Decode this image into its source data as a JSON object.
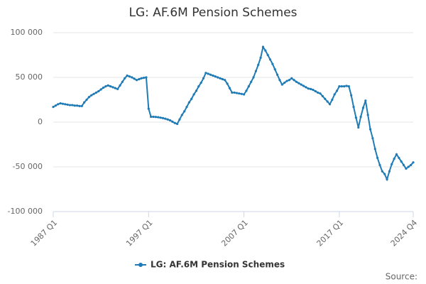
{
  "chart_data": {
    "type": "line",
    "title": "LG: AF.6M Pension Schemes",
    "categories": [
      "1987 Q1",
      null,
      null,
      null,
      null,
      null,
      null,
      null,
      null,
      null,
      null,
      null,
      null,
      null,
      null,
      null,
      null,
      null,
      null,
      null,
      null,
      null,
      null,
      null,
      null,
      null,
      null,
      null,
      null,
      null,
      null,
      null,
      null,
      null,
      null,
      null,
      null,
      null,
      null,
      null,
      "1997 Q1",
      null,
      null,
      null,
      null,
      null,
      null,
      null,
      null,
      null,
      null,
      null,
      null,
      null,
      null,
      null,
      null,
      null,
      null,
      null,
      null,
      null,
      null,
      null,
      null,
      null,
      null,
      null,
      null,
      null,
      null,
      null,
      null,
      null,
      null,
      null,
      null,
      null,
      null,
      null,
      "2007 Q1",
      null,
      null,
      null,
      null,
      null,
      null,
      null,
      null,
      null,
      null,
      null,
      null,
      null,
      null,
      null,
      null,
      null,
      null,
      null,
      null,
      null,
      null,
      null,
      null,
      null,
      null,
      null,
      null,
      null,
      null,
      null,
      null,
      null,
      null,
      null,
      null,
      null,
      null,
      null,
      "2017 Q1",
      null,
      null,
      null,
      null,
      null,
      null,
      null,
      null,
      null,
      null,
      null,
      null,
      null,
      null,
      null,
      null,
      null,
      null,
      null,
      null,
      null,
      null,
      null,
      null,
      null,
      null,
      null,
      null,
      null,
      null,
      "2024 Q4"
    ],
    "series": [
      {
        "name": "LG: AF.6M Pension Schemes",
        "color": "#1f7bb6",
        "values": [
          17000,
          18500,
          20000,
          21000,
          20500,
          20000,
          19500,
          19000,
          19000,
          18500,
          18500,
          18000,
          18000,
          22000,
          25000,
          28000,
          30000,
          31500,
          33000,
          34500,
          36500,
          38500,
          40000,
          41000,
          40000,
          39000,
          38000,
          37000,
          41000,
          45000,
          49000,
          52000,
          51000,
          50000,
          48500,
          47000,
          48000,
          49000,
          49500,
          50000,
          15000,
          6000,
          6000,
          5800,
          5500,
          5000,
          4500,
          3800,
          3000,
          2000,
          500,
          -1000,
          -2000,
          3000,
          8000,
          12000,
          17000,
          22000,
          26000,
          31000,
          35000,
          40000,
          44000,
          49000,
          55000,
          54000,
          53000,
          52000,
          51000,
          50000,
          49000,
          48000,
          47000,
          43000,
          38000,
          33000,
          33000,
          32500,
          32000,
          31500,
          31000,
          35000,
          40000,
          45000,
          50000,
          57000,
          64000,
          72000,
          84000,
          80000,
          75000,
          70000,
          65000,
          59000,
          53000,
          47000,
          42000,
          44000,
          46000,
          47000,
          49000,
          47000,
          45000,
          43500,
          42000,
          40500,
          39000,
          37500,
          37000,
          36000,
          34500,
          33000,
          32000,
          29000,
          26000,
          23000,
          20000,
          25000,
          31000,
          35000,
          40000,
          40000,
          40000,
          40500,
          40000,
          30000,
          17000,
          5000,
          -6000,
          6000,
          16000,
          24000,
          8000,
          -8000,
          -18000,
          -30000,
          -40000,
          -48000,
          -55000,
          -58000,
          -64000,
          -55000,
          -47000,
          -41000,
          -36000,
          -40000,
          -44000,
          -48000,
          -52000,
          -50000,
          -48000,
          -45000
        ]
      }
    ],
    "ylim": [
      -100000,
      100000
    ],
    "yticks": [
      {
        "value": -100000,
        "label": "-100 000"
      },
      {
        "value": -50000,
        "label": "-50 000"
      },
      0,
      {
        "value": 50000,
        "label": "50 000"
      },
      {
        "value": 100000,
        "label": "100 000"
      }
    ],
    "grid": true,
    "source": "Source:"
  }
}
